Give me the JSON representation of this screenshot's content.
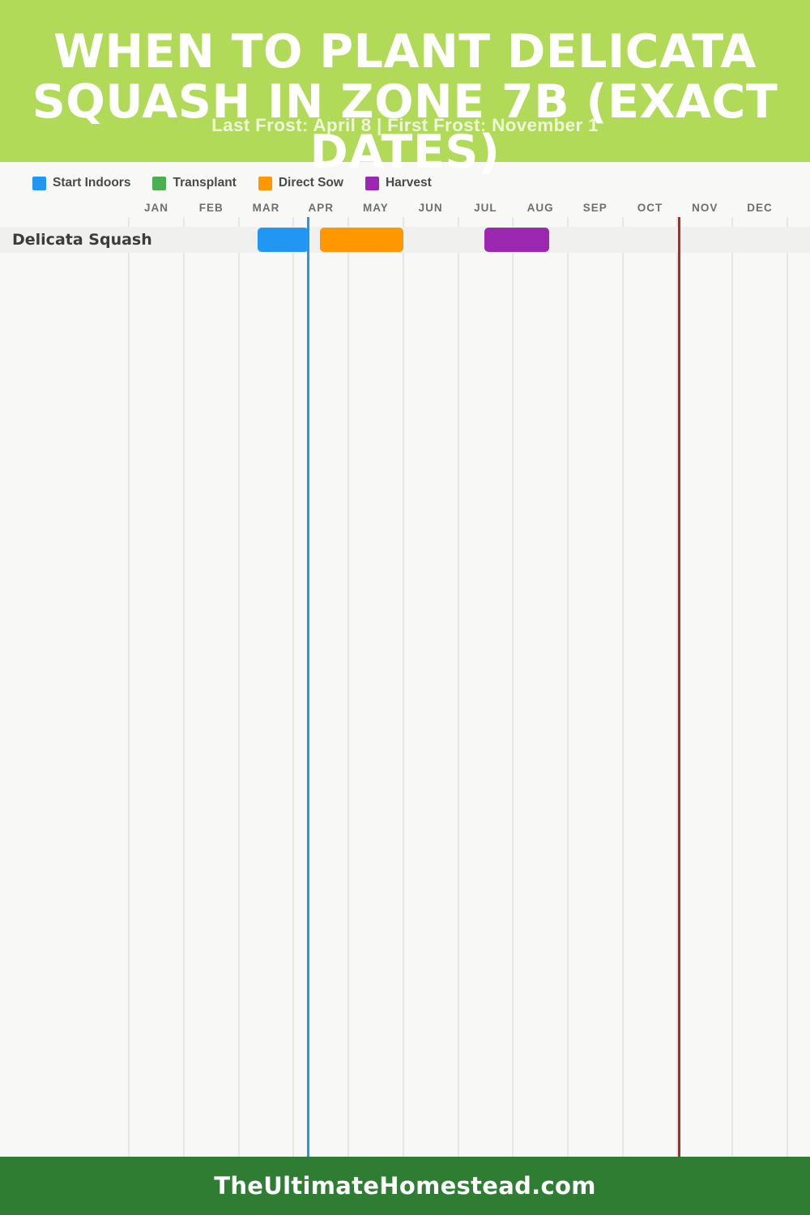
{
  "header": {
    "title": "WHEN TO PLANT DELICATA SQUASH IN ZONE 7B (EXACT DATES)",
    "title_lines": [
      "WHEN TO PLANT DELICATA",
      "SQUASH IN ZONE 7B (EXACT",
      "DATES)"
    ],
    "subtitle": "Last Frost: April 8 | First Frost: November 1",
    "background_color": "#b1da58",
    "text_color": "#ffffff"
  },
  "legend": {
    "items": [
      {
        "label": "Start Indoors",
        "color": "#2196F3"
      },
      {
        "label": "Transplant",
        "color": "#4CAF50"
      },
      {
        "label": "Direct Sow",
        "color": "#FF9800"
      },
      {
        "label": "Harvest",
        "color": "#9C27B0"
      }
    ]
  },
  "chart_data": {
    "type": "gantt",
    "title": "When to Plant Delicata Squash in Zone 7b (Exact Dates)",
    "months": [
      "JAN",
      "FEB",
      "MAR",
      "APR",
      "MAY",
      "JUN",
      "JUL",
      "AUG",
      "SEP",
      "OCT",
      "NOV",
      "DEC"
    ],
    "last_frost": "April 8",
    "first_frost": "November 1",
    "rows": [
      {
        "label": "Delicata Squash",
        "segments": [
          {
            "type": "Start Indoors",
            "color": "#2196F3",
            "start": "Mar 11",
            "end": "Apr 8",
            "start_month_frac": 2.34,
            "end_month_frac": 3.27
          },
          {
            "type": "Direct Sow",
            "color": "#FF9800",
            "start": "Apr 15",
            "end": "May 31",
            "start_month_frac": 3.48,
            "end_month_frac": 5.0
          },
          {
            "type": "Harvest",
            "color": "#9C27B0",
            "start": "Jul 15",
            "end": "Aug 20",
            "start_month_frac": 6.48,
            "end_month_frac": 7.66
          }
        ]
      }
    ],
    "markers": [
      {
        "name": "last-frost",
        "label": "Last Frost: April 8",
        "color": "#2196F3",
        "month_frac": 3.27
      },
      {
        "name": "first-frost",
        "label": "First Frost: November 1",
        "color": "#B02A25",
        "month_frac": 10.03
      }
    ]
  },
  "footer": {
    "text": "TheUltimateHomestead.com",
    "background_color": "#2e7d32"
  }
}
